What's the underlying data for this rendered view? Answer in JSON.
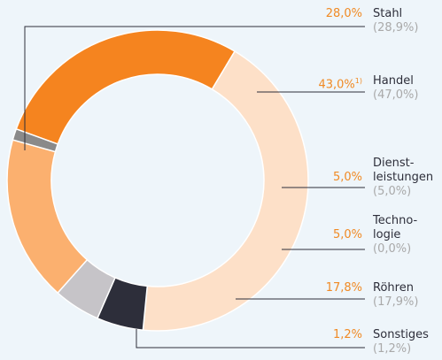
{
  "chart_data": {
    "type": "donut",
    "categories": [
      "Stahl",
      "Handel",
      "Dienst-\nleistungen",
      "Techno-\nlogie",
      "Röhren",
      "Sonstiges"
    ],
    "values": [
      28.0,
      43.0,
      5.0,
      5.0,
      17.8,
      1.2
    ],
    "value_labels": [
      "28,0%",
      "43,0%",
      "5,0%",
      "5,0%",
      "17,8%",
      "1,2%"
    ],
    "value_label_notes": [
      null,
      "1)",
      null,
      null,
      null,
      null
    ],
    "previous_value_labels": [
      "(28,9%)",
      "(47,0%)",
      "(5,0%)",
      "(0,0%)",
      "(17,9%)",
      "(1,2%)"
    ],
    "colors": [
      "#f5841f",
      "#fde0c8",
      "#2d2e3a",
      "#c6c4c8",
      "#fbb06f",
      "#8a8a8a"
    ]
  }
}
